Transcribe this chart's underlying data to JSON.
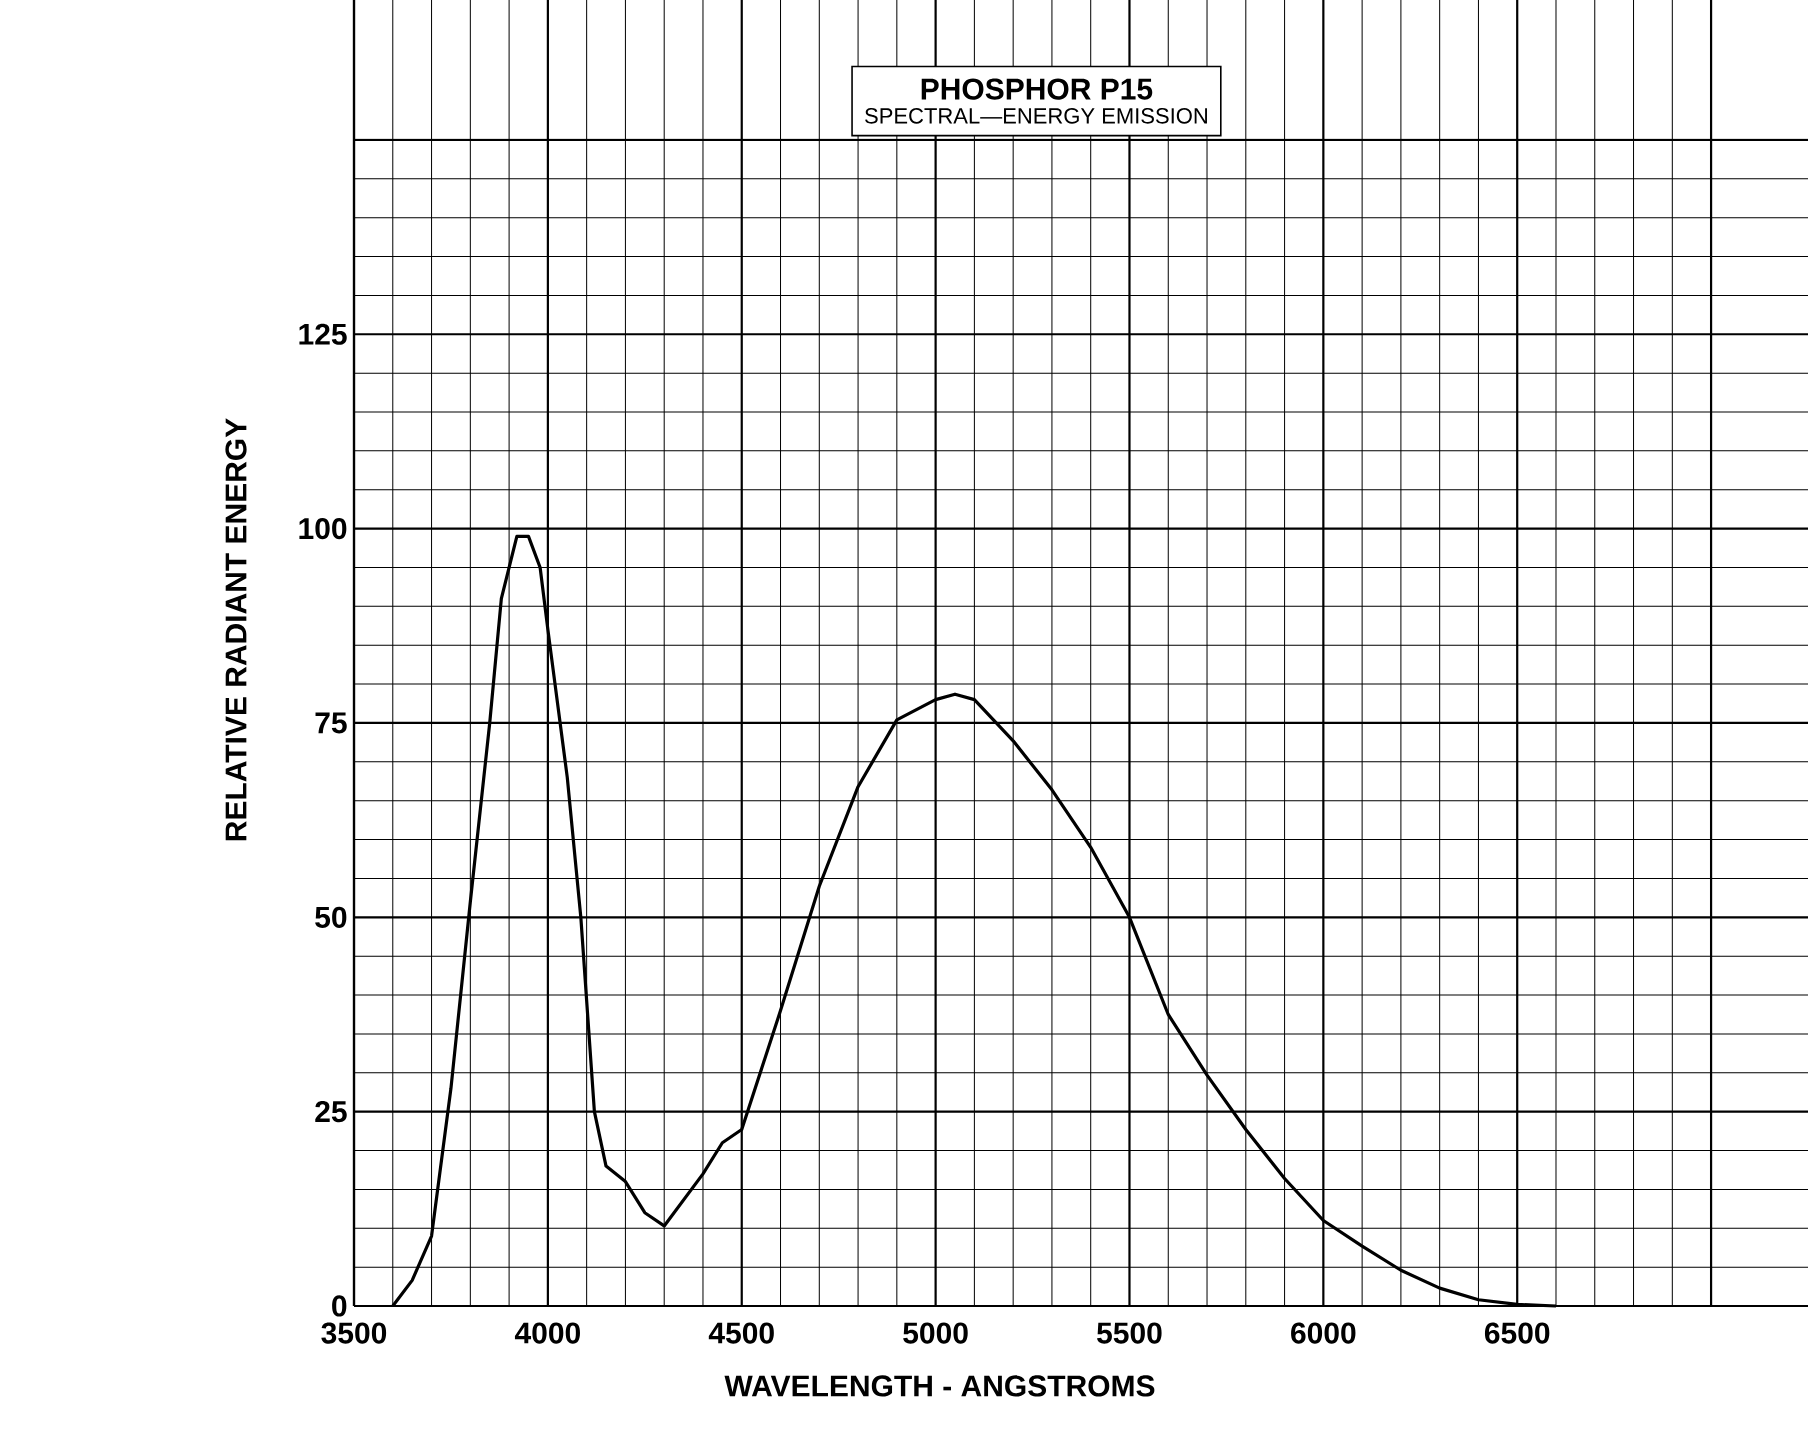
{
  "chart_data": {
    "type": "line",
    "title": "PHOSPHOR P15",
    "subtitle": "SPECTRAL—ENERGY EMISSION",
    "xlabel": "WAVELENGTH - ANGSTROMS",
    "ylabel": "RELATIVE RADIANT ENERGY",
    "x": [
      3600,
      3650,
      3700,
      3750,
      3800,
      3850,
      3880,
      3920,
      3950,
      3980,
      4000,
      4050,
      4085,
      4120,
      4150,
      4200,
      4250,
      4300,
      4400,
      4450,
      4500,
      4600,
      4700,
      4800,
      4900,
      5000,
      5050,
      5100,
      5200,
      5300,
      5400,
      5500,
      5600,
      5700,
      5800,
      5900,
      6000,
      6100,
      6200,
      6300,
      6400,
      6500,
      6600
    ],
    "series": [
      {
        "color": "#000000",
        "values": [
          0,
          3.3,
          9,
          28,
          52,
          75,
          91,
          99,
          99,
          95,
          87,
          68,
          50,
          25,
          18,
          16,
          12,
          10.3,
          17,
          21,
          22.7,
          38,
          54,
          66.8,
          75.4,
          78,
          78.7,
          78,
          72.7,
          66.4,
          59,
          50,
          37.5,
          29.7,
          22.7,
          16.4,
          11,
          7.7,
          4.6,
          2.3,
          0.8,
          0.2,
          0
        ]
      }
    ],
    "xlim": [
      3500,
      7250
    ],
    "ylim": [
      0,
      168
    ],
    "xticks": [
      3500,
      4000,
      4500,
      5000,
      5500,
      6000,
      6500,
      {
        "value": 7000,
        "label": null
      }
    ],
    "yticks": [
      0,
      25,
      50,
      75,
      100,
      125,
      {
        "value": 150,
        "label": null
      }
    ],
    "grid": true,
    "line_style": "solid",
    "marker": "none"
  }
}
